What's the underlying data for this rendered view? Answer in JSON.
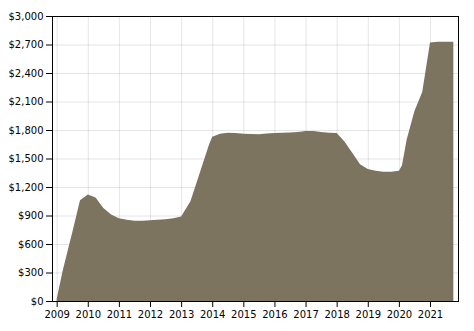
{
  "chart_data": {
    "type": "area",
    "x": [
      2009.0,
      2009.2,
      2009.5,
      2009.75,
      2010.0,
      2010.25,
      2010.5,
      2010.75,
      2011.0,
      2011.25,
      2011.5,
      2011.75,
      2012.0,
      2012.25,
      2012.5,
      2012.75,
      2013.0,
      2013.3,
      2013.6,
      2013.9,
      2014.0,
      2014.25,
      2014.5,
      2014.75,
      2015.0,
      2015.25,
      2015.5,
      2015.75,
      2016.0,
      2016.25,
      2016.5,
      2016.75,
      2017.0,
      2017.25,
      2017.5,
      2017.75,
      2018.0,
      2018.25,
      2018.5,
      2018.75,
      2019.0,
      2019.25,
      2019.5,
      2019.75,
      2020.0,
      2020.1,
      2020.25,
      2020.5,
      2020.75,
      2021.0,
      2021.25,
      2021.75
    ],
    "values": [
      20,
      330,
      720,
      1060,
      1120,
      1090,
      980,
      910,
      870,
      855,
      845,
      845,
      850,
      855,
      860,
      870,
      890,
      1050,
      1350,
      1650,
      1730,
      1760,
      1770,
      1768,
      1760,
      1758,
      1755,
      1762,
      1768,
      1772,
      1775,
      1778,
      1790,
      1790,
      1780,
      1772,
      1768,
      1680,
      1560,
      1440,
      1390,
      1370,
      1360,
      1360,
      1370,
      1430,
      1700,
      2000,
      2200,
      2720,
      2730,
      2730
    ],
    "color": "#7d7460",
    "xlim": [
      2008.85,
      2021.9
    ],
    "xticks": [
      2009,
      2010,
      2011,
      2012,
      2013,
      2014,
      2015,
      2016,
      2017,
      2018,
      2019,
      2020,
      2021
    ],
    "ylim": [
      0,
      3000
    ],
    "yticks": [
      {
        "value": 0,
        "label": "$0"
      },
      {
        "value": 300,
        "label": "$300"
      },
      {
        "value": 600,
        "label": "$600"
      },
      {
        "value": 900,
        "label": "$900"
      },
      {
        "value": 1200,
        "label": "$1,200"
      },
      {
        "value": 1500,
        "label": "$1,500"
      },
      {
        "value": 1800,
        "label": "$1,800"
      },
      {
        "value": 2100,
        "label": "$2,100"
      },
      {
        "value": 2400,
        "label": "$2,400"
      },
      {
        "value": 2700,
        "label": "$2,700"
      },
      {
        "value": 3000,
        "label": "$3,000"
      }
    ],
    "grid": true
  }
}
